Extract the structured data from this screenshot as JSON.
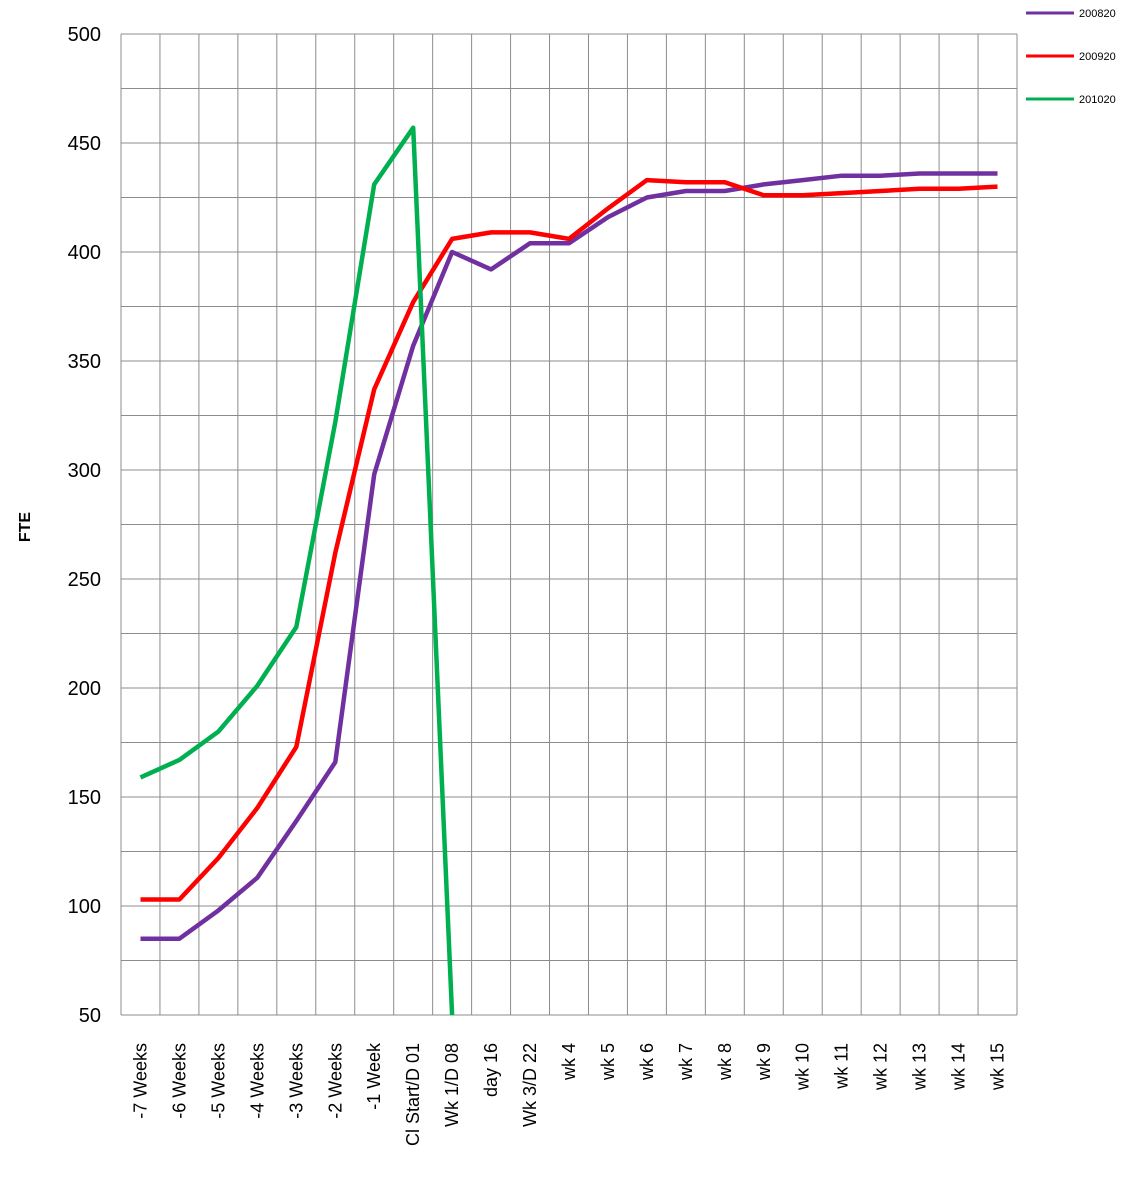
{
  "chart_data": {
    "type": "line",
    "title": "",
    "xlabel": "",
    "ylabel": "FTE",
    "ylim": [
      50,
      500
    ],
    "yticks": [
      50,
      100,
      150,
      200,
      250,
      300,
      350,
      400,
      450,
      500
    ],
    "grid": true,
    "legend_position": "top-right",
    "categories": [
      "-7 Weeks",
      "-6 Weeks",
      "-5 Weeks",
      "-4 Weeks",
      "-3 Weeks",
      "-2 Weeks",
      "-1 Week",
      "Cl Start/D 01",
      "Wk 1/D 08",
      "day 16",
      "Wk 3/D 22",
      "wk 4",
      "wk 5",
      "wk 6",
      "wk 7",
      "wk 8",
      "wk 9",
      "wk 10",
      "wk 11",
      "wk 12",
      "wk 13",
      "wk 14",
      "wk 15"
    ],
    "series": [
      {
        "name": "200820",
        "color": "#7030a0",
        "values": [
          85,
          85,
          98,
          113,
          139,
          166,
          298,
          357,
          400,
          392,
          404,
          404,
          416,
          425,
          428,
          428,
          431,
          433,
          435,
          435,
          436,
          436,
          436
        ]
      },
      {
        "name": "200920",
        "color": "#ff0000",
        "values": [
          103,
          103,
          122,
          145,
          173,
          262,
          337,
          377,
          406,
          409,
          409,
          406,
          420,
          433,
          432,
          432,
          426,
          426,
          427,
          428,
          429,
          429,
          430
        ]
      },
      {
        "name": "201020",
        "color": "#00b050",
        "values": [
          159,
          167,
          180,
          201,
          228,
          322,
          431,
          457,
          50,
          null,
          null,
          null,
          null,
          null,
          null,
          null,
          null,
          null,
          null,
          null,
          null,
          null,
          null
        ]
      }
    ]
  }
}
